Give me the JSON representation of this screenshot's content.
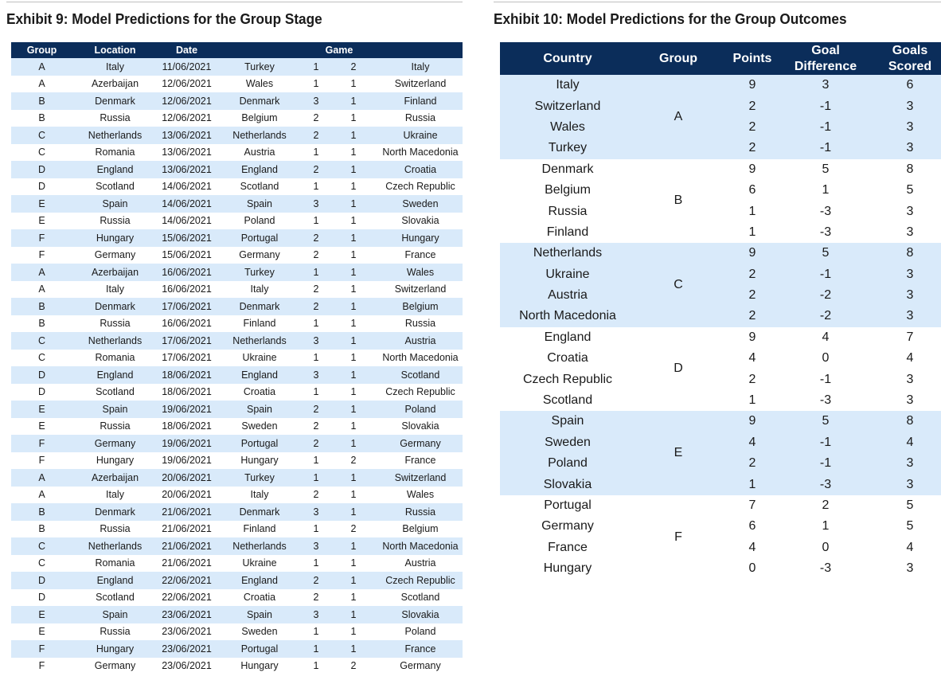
{
  "exhibit9": {
    "title": "Exhibit 9: Model Predictions for the Group Stage",
    "headers": {
      "group": "Group",
      "location": "Location",
      "date": "Date",
      "game": "Game"
    },
    "rows": [
      [
        "A",
        "Italy",
        "11/06/2021",
        "Turkey",
        "1",
        "2",
        "Italy"
      ],
      [
        "A",
        "Azerbaijan",
        "12/06/2021",
        "Wales",
        "1",
        "1",
        "Switzerland"
      ],
      [
        "B",
        "Denmark",
        "12/06/2021",
        "Denmark",
        "3",
        "1",
        "Finland"
      ],
      [
        "B",
        "Russia",
        "12/06/2021",
        "Belgium",
        "2",
        "1",
        "Russia"
      ],
      [
        "C",
        "Netherlands",
        "13/06/2021",
        "Netherlands",
        "2",
        "1",
        "Ukraine"
      ],
      [
        "C",
        "Romania",
        "13/06/2021",
        "Austria",
        "1",
        "1",
        "North Macedonia"
      ],
      [
        "D",
        "England",
        "13/06/2021",
        "England",
        "2",
        "1",
        "Croatia"
      ],
      [
        "D",
        "Scotland",
        "14/06/2021",
        "Scotland",
        "1",
        "1",
        "Czech Republic"
      ],
      [
        "E",
        "Spain",
        "14/06/2021",
        "Spain",
        "3",
        "1",
        "Sweden"
      ],
      [
        "E",
        "Russia",
        "14/06/2021",
        "Poland",
        "1",
        "1",
        "Slovakia"
      ],
      [
        "F",
        "Hungary",
        "15/06/2021",
        "Portugal",
        "2",
        "1",
        "Hungary"
      ],
      [
        "F",
        "Germany",
        "15/06/2021",
        "Germany",
        "2",
        "1",
        "France"
      ],
      [
        "A",
        "Azerbaijan",
        "16/06/2021",
        "Turkey",
        "1",
        "1",
        "Wales"
      ],
      [
        "A",
        "Italy",
        "16/06/2021",
        "Italy",
        "2",
        "1",
        "Switzerland"
      ],
      [
        "B",
        "Denmark",
        "17/06/2021",
        "Denmark",
        "2",
        "1",
        "Belgium"
      ],
      [
        "B",
        "Russia",
        "16/06/2021",
        "Finland",
        "1",
        "1",
        "Russia"
      ],
      [
        "C",
        "Netherlands",
        "17/06/2021",
        "Netherlands",
        "3",
        "1",
        "Austria"
      ],
      [
        "C",
        "Romania",
        "17/06/2021",
        "Ukraine",
        "1",
        "1",
        "North Macedonia"
      ],
      [
        "D",
        "England",
        "18/06/2021",
        "England",
        "3",
        "1",
        "Scotland"
      ],
      [
        "D",
        "Scotland",
        "18/06/2021",
        "Croatia",
        "1",
        "1",
        "Czech Republic"
      ],
      [
        "E",
        "Spain",
        "19/06/2021",
        "Spain",
        "2",
        "1",
        "Poland"
      ],
      [
        "E",
        "Russia",
        "18/06/2021",
        "Sweden",
        "2",
        "1",
        "Slovakia"
      ],
      [
        "F",
        "Germany",
        "19/06/2021",
        "Portugal",
        "2",
        "1",
        "Germany"
      ],
      [
        "F",
        "Hungary",
        "19/06/2021",
        "Hungary",
        "1",
        "2",
        "France"
      ],
      [
        "A",
        "Azerbaijan",
        "20/06/2021",
        "Turkey",
        "1",
        "1",
        "Switzerland"
      ],
      [
        "A",
        "Italy",
        "20/06/2021",
        "Italy",
        "2",
        "1",
        "Wales"
      ],
      [
        "B",
        "Denmark",
        "21/06/2021",
        "Denmark",
        "3",
        "1",
        "Russia"
      ],
      [
        "B",
        "Russia",
        "21/06/2021",
        "Finland",
        "1",
        "2",
        "Belgium"
      ],
      [
        "C",
        "Netherlands",
        "21/06/2021",
        "Netherlands",
        "3",
        "1",
        "North Macedonia"
      ],
      [
        "C",
        "Romania",
        "21/06/2021",
        "Ukraine",
        "1",
        "1",
        "Austria"
      ],
      [
        "D",
        "England",
        "22/06/2021",
        "England",
        "2",
        "1",
        "Czech Republic"
      ],
      [
        "D",
        "Scotland",
        "22/06/2021",
        "Croatia",
        "2",
        "1",
        "Scotland"
      ],
      [
        "E",
        "Spain",
        "23/06/2021",
        "Spain",
        "3",
        "1",
        "Slovakia"
      ],
      [
        "E",
        "Russia",
        "23/06/2021",
        "Sweden",
        "1",
        "1",
        "Poland"
      ],
      [
        "F",
        "Hungary",
        "23/06/2021",
        "Portugal",
        "1",
        "1",
        "France"
      ],
      [
        "F",
        "Germany",
        "23/06/2021",
        "Hungary",
        "1",
        "2",
        "Germany"
      ]
    ]
  },
  "exhibit10": {
    "title": "Exhibit 10: Model Predictions for the Group Outcomes",
    "headers": {
      "country": "Country",
      "group": "Group",
      "points": "Points",
      "goal_difference_1": "Goal",
      "goal_difference_2": "Difference",
      "goals_scored_1": "Goals",
      "goals_scored_2": "Scored"
    },
    "groups": [
      {
        "group": "A",
        "teams": [
          [
            "Italy",
            "9",
            "3",
            "6"
          ],
          [
            "Switzerland",
            "2",
            "-1",
            "3"
          ],
          [
            "Wales",
            "2",
            "-1",
            "3"
          ],
          [
            "Turkey",
            "2",
            "-1",
            "3"
          ]
        ]
      },
      {
        "group": "B",
        "teams": [
          [
            "Denmark",
            "9",
            "5",
            "8"
          ],
          [
            "Belgium",
            "6",
            "1",
            "5"
          ],
          [
            "Russia",
            "1",
            "-3",
            "3"
          ],
          [
            "Finland",
            "1",
            "-3",
            "3"
          ]
        ]
      },
      {
        "group": "C",
        "teams": [
          [
            "Netherlands",
            "9",
            "5",
            "8"
          ],
          [
            "Ukraine",
            "2",
            "-1",
            "3"
          ],
          [
            "Austria",
            "2",
            "-2",
            "3"
          ],
          [
            "North Macedonia",
            "2",
            "-2",
            "3"
          ]
        ]
      },
      {
        "group": "D",
        "teams": [
          [
            "England",
            "9",
            "4",
            "7"
          ],
          [
            "Croatia",
            "4",
            "0",
            "4"
          ],
          [
            "Czech Republic",
            "2",
            "-1",
            "3"
          ],
          [
            "Scotland",
            "1",
            "-3",
            "3"
          ]
        ]
      },
      {
        "group": "E",
        "teams": [
          [
            "Spain",
            "9",
            "5",
            "8"
          ],
          [
            "Sweden",
            "4",
            "-1",
            "4"
          ],
          [
            "Poland",
            "2",
            "-1",
            "3"
          ],
          [
            "Slovakia",
            "1",
            "-3",
            "3"
          ]
        ]
      },
      {
        "group": "F",
        "teams": [
          [
            "Portugal",
            "7",
            "2",
            "5"
          ],
          [
            "Germany",
            "6",
            "1",
            "5"
          ],
          [
            "France",
            "4",
            "0",
            "4"
          ],
          [
            "Hungary",
            "0",
            "-3",
            "3"
          ]
        ]
      }
    ]
  },
  "colors": {
    "header_bg": "#0b2d5a",
    "shade": "#d9eafa"
  }
}
